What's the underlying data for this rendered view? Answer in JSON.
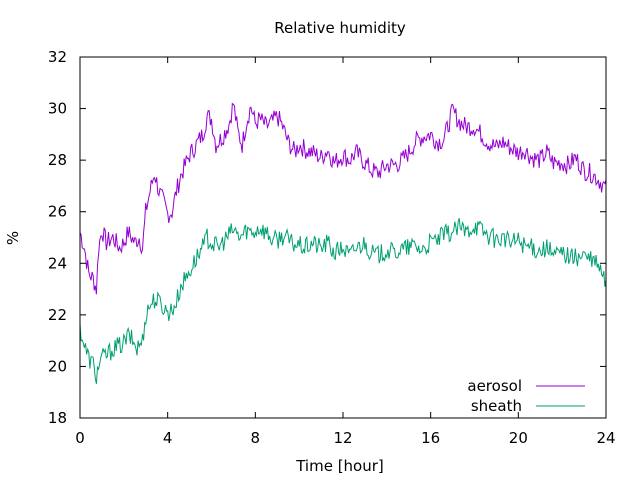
{
  "chart_data": {
    "type": "line",
    "title": "Relative humidity",
    "xlabel": "Time [hour]",
    "ylabel": "%",
    "xlim": [
      0,
      24
    ],
    "ylim": [
      18,
      32
    ],
    "xticks": [
      0,
      4,
      8,
      12,
      16,
      20,
      24
    ],
    "yticks": [
      18,
      20,
      22,
      24,
      26,
      28,
      30,
      32
    ],
    "grid": false,
    "legend_position": "bottom-right",
    "series": [
      {
        "name": "aerosol",
        "color": "#9400d3",
        "points": [
          [
            0.0,
            25.2
          ],
          [
            0.2,
            24.6
          ],
          [
            0.4,
            23.6
          ],
          [
            0.6,
            23.4
          ],
          [
            0.75,
            23.0
          ],
          [
            0.85,
            24.6
          ],
          [
            1.0,
            25.3
          ],
          [
            1.2,
            24.8
          ],
          [
            1.5,
            25.0
          ],
          [
            1.8,
            24.6
          ],
          [
            2.0,
            24.8
          ],
          [
            2.2,
            25.2
          ],
          [
            2.5,
            24.8
          ],
          [
            2.7,
            25.0
          ],
          [
            2.85,
            24.6
          ],
          [
            3.0,
            26.0
          ],
          [
            3.2,
            26.8
          ],
          [
            3.4,
            27.5
          ],
          [
            3.6,
            26.8
          ],
          [
            3.8,
            26.4
          ],
          [
            4.0,
            25.9
          ],
          [
            4.2,
            26.0
          ],
          [
            4.4,
            26.8
          ],
          [
            4.6,
            27.4
          ],
          [
            4.8,
            27.8
          ],
          [
            5.0,
            28.2
          ],
          [
            5.3,
            28.6
          ],
          [
            5.6,
            29.0
          ],
          [
            5.8,
            29.7
          ],
          [
            6.0,
            29.6
          ],
          [
            6.2,
            28.6
          ],
          [
            6.5,
            28.9
          ],
          [
            6.8,
            29.4
          ],
          [
            7.0,
            30.2
          ],
          [
            7.2,
            29.1
          ],
          [
            7.4,
            28.6
          ],
          [
            7.6,
            29.5
          ],
          [
            7.8,
            30.1
          ],
          [
            8.0,
            29.4
          ],
          [
            8.2,
            29.6
          ],
          [
            8.5,
            29.3
          ],
          [
            8.8,
            29.5
          ],
          [
            9.0,
            29.7
          ],
          [
            9.2,
            29.4
          ],
          [
            9.5,
            28.7
          ],
          [
            9.8,
            28.3
          ],
          [
            10.0,
            28.6
          ],
          [
            10.3,
            28.4
          ],
          [
            10.6,
            28.3
          ],
          [
            11.0,
            28.1
          ],
          [
            11.3,
            28.4
          ],
          [
            11.6,
            27.9
          ],
          [
            12.0,
            28.2
          ],
          [
            12.3,
            28.0
          ],
          [
            12.6,
            28.3
          ],
          [
            13.0,
            27.9
          ],
          [
            13.3,
            27.6
          ],
          [
            13.6,
            27.5
          ],
          [
            14.0,
            27.8
          ],
          [
            14.3,
            27.8
          ],
          [
            14.6,
            27.9
          ],
          [
            15.0,
            28.3
          ],
          [
            15.3,
            28.7
          ],
          [
            15.6,
            28.9
          ],
          [
            16.0,
            29.0
          ],
          [
            16.3,
            28.7
          ],
          [
            16.6,
            28.8
          ],
          [
            17.0,
            29.9
          ],
          [
            17.3,
            29.5
          ],
          [
            17.6,
            29.3
          ],
          [
            18.0,
            29.3
          ],
          [
            18.3,
            29.0
          ],
          [
            18.6,
            28.7
          ],
          [
            19.0,
            28.5
          ],
          [
            19.3,
            28.7
          ],
          [
            19.6,
            28.5
          ],
          [
            20.0,
            28.3
          ],
          [
            20.3,
            28.4
          ],
          [
            20.6,
            28.1
          ],
          [
            21.0,
            28.0
          ],
          [
            21.3,
            28.3
          ],
          [
            21.6,
            27.9
          ],
          [
            22.0,
            27.9
          ],
          [
            22.3,
            27.8
          ],
          [
            22.6,
            28.1
          ],
          [
            23.0,
            27.6
          ],
          [
            23.3,
            27.5
          ],
          [
            23.6,
            27.3
          ],
          [
            24.0,
            26.9
          ]
        ]
      },
      {
        "name": "sheath",
        "color": "#009e73",
        "points": [
          [
            0.0,
            21.5
          ],
          [
            0.2,
            20.8
          ],
          [
            0.4,
            20.3
          ],
          [
            0.6,
            20.1
          ],
          [
            0.75,
            19.6
          ],
          [
            0.9,
            20.2
          ],
          [
            1.1,
            20.4
          ],
          [
            1.3,
            20.5
          ],
          [
            1.5,
            20.7
          ],
          [
            1.8,
            20.8
          ],
          [
            2.0,
            20.9
          ],
          [
            2.2,
            21.2
          ],
          [
            2.4,
            21.0
          ],
          [
            2.6,
            20.7
          ],
          [
            2.85,
            21.0
          ],
          [
            3.0,
            22.0
          ],
          [
            3.2,
            22.4
          ],
          [
            3.4,
            22.6
          ],
          [
            3.6,
            22.5
          ],
          [
            3.8,
            22.3
          ],
          [
            4.0,
            22.1
          ],
          [
            4.2,
            22.2
          ],
          [
            4.4,
            22.5
          ],
          [
            4.6,
            23.1
          ],
          [
            4.8,
            23.4
          ],
          [
            5.0,
            23.7
          ],
          [
            5.3,
            24.2
          ],
          [
            5.6,
            24.6
          ],
          [
            5.8,
            25.0
          ],
          [
            6.0,
            24.8
          ],
          [
            6.3,
            24.6
          ],
          [
            6.6,
            24.9
          ],
          [
            7.0,
            25.3
          ],
          [
            7.3,
            25.0
          ],
          [
            7.6,
            25.3
          ],
          [
            7.9,
            25.2
          ],
          [
            8.2,
            25.4
          ],
          [
            8.5,
            25.2
          ],
          [
            8.8,
            24.9
          ],
          [
            9.0,
            24.9
          ],
          [
            9.3,
            25.1
          ],
          [
            9.6,
            24.8
          ],
          [
            10.0,
            24.7
          ],
          [
            10.3,
            24.6
          ],
          [
            10.6,
            24.8
          ],
          [
            11.0,
            24.6
          ],
          [
            11.3,
            24.8
          ],
          [
            11.6,
            24.4
          ],
          [
            12.0,
            24.6
          ],
          [
            12.3,
            24.3
          ],
          [
            12.6,
            24.6
          ],
          [
            13.0,
            24.8
          ],
          [
            13.3,
            24.4
          ],
          [
            13.6,
            24.3
          ],
          [
            14.0,
            24.5
          ],
          [
            14.3,
            24.4
          ],
          [
            14.6,
            24.5
          ],
          [
            15.0,
            24.6
          ],
          [
            15.3,
            24.7
          ],
          [
            15.6,
            24.5
          ],
          [
            16.0,
            24.8
          ],
          [
            16.3,
            24.9
          ],
          [
            16.6,
            25.1
          ],
          [
            17.0,
            25.2
          ],
          [
            17.3,
            25.4
          ],
          [
            17.6,
            25.2
          ],
          [
            18.0,
            25.5
          ],
          [
            18.3,
            25.3
          ],
          [
            18.6,
            25.1
          ],
          [
            19.0,
            24.9
          ],
          [
            19.3,
            25.0
          ],
          [
            19.6,
            24.8
          ],
          [
            20.0,
            24.9
          ],
          [
            20.3,
            24.7
          ],
          [
            20.6,
            24.6
          ],
          [
            21.0,
            24.5
          ],
          [
            21.3,
            24.6
          ],
          [
            21.6,
            24.3
          ],
          [
            22.0,
            24.4
          ],
          [
            22.3,
            24.3
          ],
          [
            22.6,
            24.2
          ],
          [
            23.0,
            24.3
          ],
          [
            23.3,
            24.1
          ],
          [
            23.6,
            24.0
          ],
          [
            24.0,
            23.2
          ]
        ]
      }
    ]
  }
}
